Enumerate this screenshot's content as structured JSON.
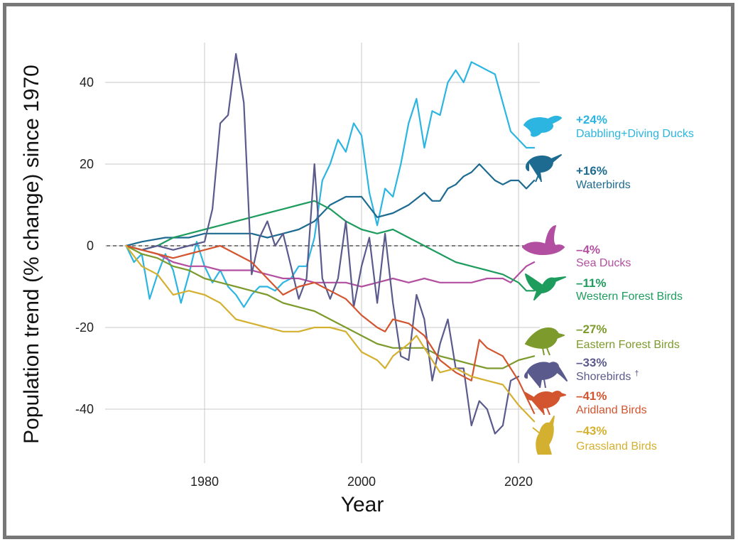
{
  "chart_data": {
    "type": "line",
    "xlabel": "Year",
    "ylabel": "Population trend (% change) since 1970",
    "xlim": [
      1962,
      2023
    ],
    "ylim": [
      -50,
      48
    ],
    "x_ticks": [
      "1980",
      "2000",
      "2020"
    ],
    "y_ticks": [
      "40",
      "20",
      "0",
      "-20",
      "-40"
    ],
    "baseline": 0,
    "grid": true,
    "series": [
      {
        "name": "Dabbling+Diving Ducks",
        "change": "+24%",
        "color": "#2bb5e0",
        "icon": "flying-duck-icon",
        "x": [
          1970,
          1971,
          1972,
          1973,
          1974,
          1975,
          1976,
          1977,
          1978,
          1979,
          1980,
          1981,
          1982,
          1983,
          1984,
          1985,
          1986,
          1987,
          1988,
          1989,
          1990,
          1991,
          1992,
          1993,
          1994,
          1995,
          1996,
          1997,
          1998,
          1999,
          2000,
          2001,
          2002,
          2003,
          2004,
          2005,
          2006,
          2007,
          2008,
          2009,
          2010,
          2011,
          2012,
          2013,
          2014,
          2015,
          2016,
          2017,
          2018,
          2019,
          2020,
          2021,
          2022
        ],
        "y": [
          0,
          -4,
          -2,
          -13,
          -7,
          -2,
          -6,
          -14,
          -7,
          1,
          -5,
          -9,
          -6,
          -10,
          -12,
          -15,
          -12,
          -10,
          -10,
          -11,
          -9,
          -8,
          -5,
          -5,
          2,
          16,
          20,
          26,
          23,
          30,
          27,
          13,
          5,
          14,
          12,
          20,
          30,
          36,
          24,
          33,
          32,
          40,
          43,
          40,
          45,
          44,
          43,
          42,
          35,
          28,
          26,
          24,
          24
        ]
      },
      {
        "name": "Waterbirds",
        "change": "+16%",
        "color": "#1d6b90",
        "icon": "heron-icon",
        "x": [
          1970,
          1972,
          1975,
          1978,
          1980,
          1982,
          1984,
          1986,
          1988,
          1990,
          1992,
          1994,
          1996,
          1998,
          2000,
          2002,
          2004,
          2006,
          2008,
          2009,
          2010,
          2011,
          2012,
          2013,
          2014,
          2015,
          2016,
          2017,
          2018,
          2019,
          2020,
          2021,
          2022
        ],
        "y": [
          0,
          1,
          2,
          2,
          3,
          3,
          3,
          3,
          2,
          3,
          4,
          6,
          10,
          12,
          12,
          7,
          8,
          10,
          13,
          11,
          11,
          14,
          15,
          17,
          18,
          20,
          18,
          16,
          15,
          16,
          16,
          14,
          16
        ]
      },
      {
        "name": "Sea Ducks",
        "change": "–4%",
        "color": "#b24fa0",
        "icon": "flying-sea-duck-icon",
        "x": [
          1970,
          1972,
          1974,
          1976,
          1978,
          1980,
          1982,
          1984,
          1986,
          1988,
          1990,
          1992,
          1994,
          1996,
          1998,
          2000,
          2002,
          2004,
          2006,
          2008,
          2010,
          2012,
          2014,
          2016,
          2018,
          2019,
          2020,
          2021,
          2022
        ],
        "y": [
          0,
          -1,
          -2,
          -4,
          -5,
          -5,
          -6,
          -6,
          -6,
          -7,
          -8,
          -8,
          -9,
          -9,
          -9,
          -10,
          -9,
          -8,
          -9,
          -8,
          -9,
          -9,
          -9,
          -8,
          -8,
          -9,
          -7,
          -5,
          -4
        ]
      },
      {
        "name": "Western Forest Birds",
        "change": "–11%",
        "color": "#1e9c5e",
        "icon": "hummingbird-icon",
        "x": [
          1970,
          1972,
          1974,
          1976,
          1978,
          1980,
          1982,
          1984,
          1986,
          1988,
          1990,
          1992,
          1994,
          1996,
          1998,
          2000,
          2002,
          2004,
          2006,
          2008,
          2010,
          2012,
          2014,
          2016,
          2018,
          2020,
          2021,
          2022
        ],
        "y": [
          0,
          -1,
          0,
          2,
          3,
          4,
          5,
          6,
          7,
          8,
          9,
          10,
          11,
          9,
          6,
          4,
          3,
          4,
          2,
          0,
          -2,
          -4,
          -5,
          -6,
          -7,
          -9,
          -11,
          -11
        ]
      },
      {
        "name": "Eastern Forest Birds",
        "change": "–27%",
        "color": "#7d9a2c",
        "icon": "thrush-icon",
        "x": [
          1970,
          1972,
          1974,
          1976,
          1978,
          1980,
          1982,
          1984,
          1986,
          1988,
          1990,
          1992,
          1994,
          1996,
          1998,
          2000,
          2002,
          2004,
          2006,
          2008,
          2010,
          2012,
          2014,
          2016,
          2018,
          2020,
          2022
        ],
        "y": [
          0,
          -2,
          -3,
          -5,
          -6,
          -8,
          -9,
          -10,
          -11,
          -12,
          -14,
          -15,
          -16,
          -18,
          -20,
          -22,
          -24,
          -25,
          -25,
          -25,
          -27,
          -28,
          -29,
          -30,
          -30,
          -28,
          -27
        ]
      },
      {
        "name": "Shorebirds",
        "note": "†",
        "change": "–33%",
        "color": "#5a5a8c",
        "icon": "curlew-icon",
        "x": [
          1970,
          1972,
          1974,
          1976,
          1978,
          1980,
          1981,
          1982,
          1983,
          1984,
          1985,
          1986,
          1987,
          1988,
          1989,
          1990,
          1991,
          1992,
          1993,
          1994,
          1995,
          1996,
          1997,
          1998,
          1999,
          2000,
          2001,
          2002,
          2003,
          2004,
          2005,
          2006,
          2007,
          2008,
          2009,
          2010,
          2011,
          2012,
          2013,
          2014,
          2015,
          2016,
          2017,
          2018,
          2019,
          2020
        ],
        "y": [
          0,
          -1,
          0,
          -1,
          0,
          1,
          9,
          30,
          32,
          47,
          35,
          -7,
          2,
          6,
          0,
          3,
          -5,
          -13,
          -8,
          20,
          -8,
          -13,
          -8,
          6,
          -15,
          -5,
          2,
          -14,
          3,
          -14,
          -27,
          -28,
          -12,
          -18,
          -33,
          -24,
          -18,
          -30,
          -30,
          -44,
          -38,
          -40,
          -46,
          -44,
          -33,
          -32
        ]
      },
      {
        "name": "Aridland Birds",
        "change": "–41%",
        "color": "#d2552f",
        "icon": "cactus-wren-icon",
        "x": [
          1970,
          1972,
          1974,
          1976,
          1978,
          1980,
          1982,
          1984,
          1986,
          1988,
          1990,
          1992,
          1994,
          1996,
          1998,
          2000,
          2002,
          2003,
          2004,
          2006,
          2008,
          2010,
          2012,
          2014,
          2015,
          2016,
          2018,
          2020,
          2022
        ],
        "y": [
          0,
          -1,
          -2,
          -3,
          -2,
          -1,
          0,
          -2,
          -4,
          -8,
          -12,
          -10,
          -9,
          -11,
          -13,
          -17,
          -20,
          -21,
          -18,
          -19,
          -22,
          -28,
          -31,
          -33,
          -23,
          -25,
          -27,
          -33,
          -41
        ]
      },
      {
        "name": "Grassland Birds",
        "change": "–43%",
        "color": "#d4b030",
        "icon": "meadowlark-icon",
        "x": [
          1970,
          1972,
          1974,
          1976,
          1978,
          1980,
          1982,
          1984,
          1986,
          1988,
          1990,
          1992,
          1994,
          1996,
          1998,
          2000,
          2002,
          2003,
          2004,
          2006,
          2007,
          2008,
          2010,
          2012,
          2014,
          2016,
          2018,
          2020,
          2022
        ],
        "y": [
          0,
          -5,
          -7,
          -12,
          -11,
          -12,
          -14,
          -18,
          -19,
          -20,
          -21,
          -21,
          -20,
          -20,
          -21,
          -26,
          -28,
          -30,
          -27,
          -24,
          -22,
          -25,
          -31,
          -30,
          -32,
          -33,
          -34,
          -39,
          -43
        ]
      }
    ]
  }
}
